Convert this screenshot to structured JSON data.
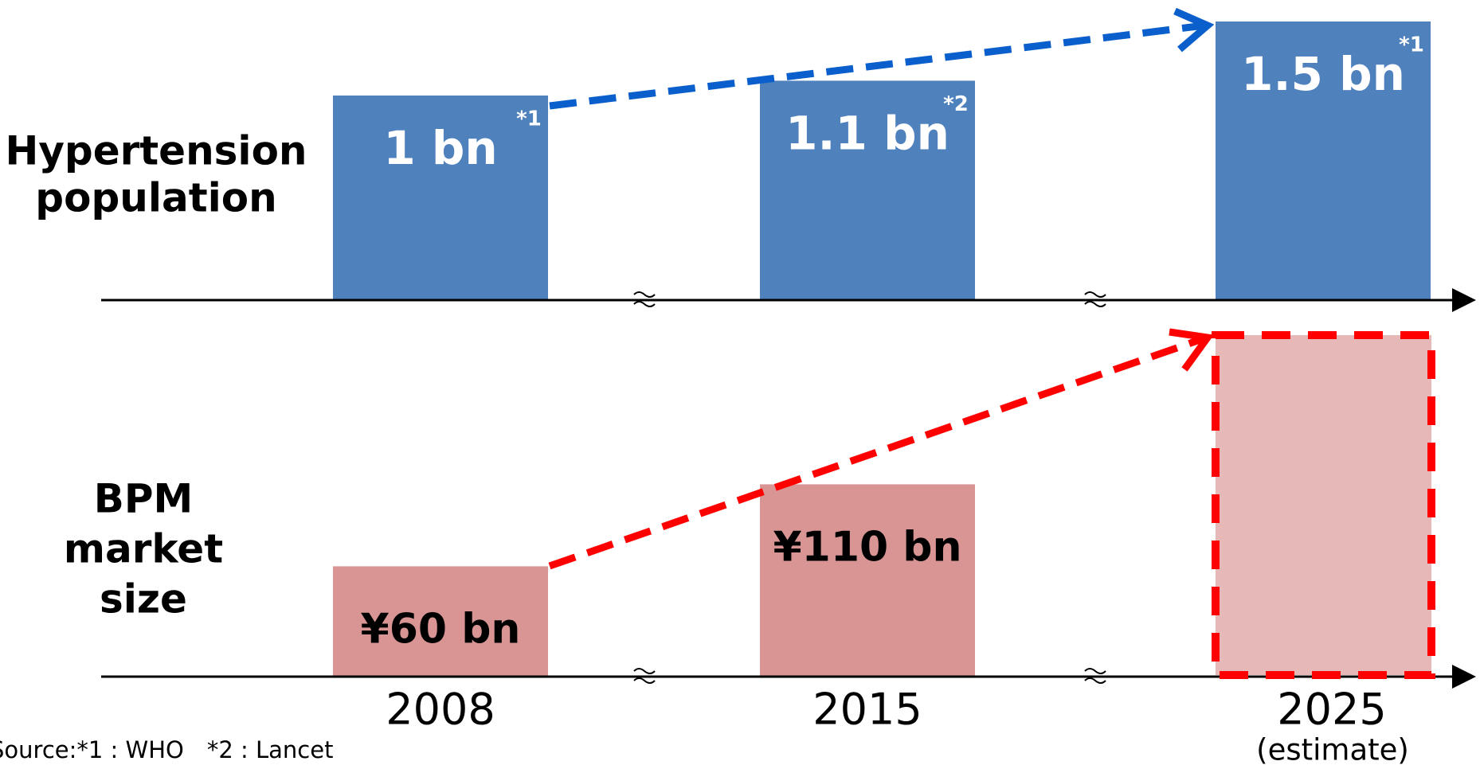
{
  "chart_data": [
    {
      "type": "bar",
      "label": [
        "Hypertension",
        "population"
      ],
      "color": "#4f81bd",
      "values": [
        1,
        1.1,
        1.5
      ],
      "value_labels": [
        "1 bn",
        "1.1 bn",
        "1.5 bn"
      ],
      "notes": [
        "*1",
        "*2",
        "*1"
      ]
    },
    {
      "type": "bar",
      "label": [
        "BPM",
        "market",
        "size"
      ],
      "color": "#d99594",
      "categories": [
        "2008",
        "2015",
        "2025"
      ],
      "category_note": "(estimate)",
      "values": [
        60,
        110,
        null
      ],
      "value_labels": [
        "¥60 bn",
        "¥110 bn",
        null
      ]
    }
  ],
  "source": "Source:*1 : WHO　*2 : Lancet"
}
